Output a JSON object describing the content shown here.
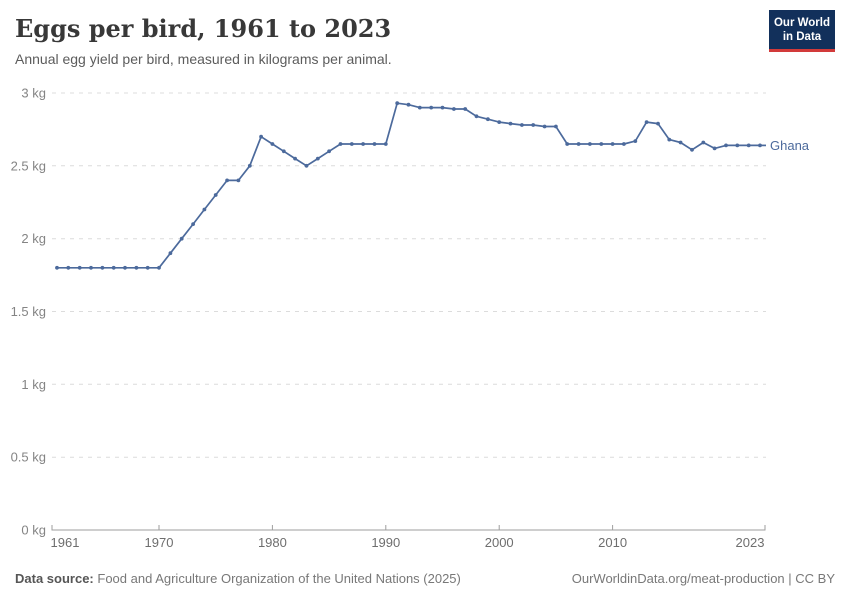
{
  "header": {
    "title": "Eggs per bird, 1961 to 2023",
    "subtitle": "Annual egg yield per bird, measured in kilograms per animal.",
    "logo": {
      "line1": "Our World",
      "line2": "in Data"
    }
  },
  "chart_data": {
    "type": "line",
    "title": "Eggs per bird, 1961 to 2023",
    "subtitle": "Annual egg yield per bird, measured in kilograms per animal.",
    "unit": "kg",
    "xlim": [
      1961,
      2023
    ],
    "ylim": [
      0,
      3
    ],
    "grid": "horizontal-dashed",
    "legend_position": "end-of-line",
    "y_ticks": [
      {
        "value": 0,
        "label": "0 kg"
      },
      {
        "value": 0.5,
        "label": "0.5 kg"
      },
      {
        "value": 1,
        "label": "1 kg"
      },
      {
        "value": 1.5,
        "label": "1.5 kg"
      },
      {
        "value": 2,
        "label": "2 kg"
      },
      {
        "value": 2.5,
        "label": "2.5 kg"
      },
      {
        "value": 3,
        "label": "3 kg"
      }
    ],
    "x_ticks": [
      {
        "value": 1961,
        "label": "1961"
      },
      {
        "value": 1970,
        "label": "1970"
      },
      {
        "value": 1980,
        "label": "1980"
      },
      {
        "value": 1990,
        "label": "1990"
      },
      {
        "value": 2000,
        "label": "2000"
      },
      {
        "value": 2010,
        "label": "2010"
      },
      {
        "value": 2023,
        "label": "2023"
      }
    ],
    "years": [
      1961,
      1962,
      1963,
      1964,
      1965,
      1966,
      1967,
      1968,
      1969,
      1970,
      1971,
      1972,
      1973,
      1974,
      1975,
      1976,
      1977,
      1978,
      1979,
      1980,
      1981,
      1982,
      1983,
      1984,
      1985,
      1986,
      1987,
      1988,
      1989,
      1990,
      1991,
      1992,
      1993,
      1994,
      1995,
      1996,
      1997,
      1998,
      1999,
      2000,
      2001,
      2002,
      2003,
      2004,
      2005,
      2006,
      2007,
      2008,
      2009,
      2010,
      2011,
      2012,
      2013,
      2014,
      2015,
      2016,
      2017,
      2018,
      2019,
      2020,
      2021,
      2022,
      2023
    ],
    "series": [
      {
        "name": "Ghana",
        "color": "#4C6A9C",
        "values": [
          1.8,
          1.8,
          1.8,
          1.8,
          1.8,
          1.8,
          1.8,
          1.8,
          1.8,
          1.8,
          1.9,
          2.0,
          2.1,
          2.2,
          2.3,
          2.4,
          2.4,
          2.5,
          2.7,
          2.65,
          2.6,
          2.55,
          2.5,
          2.55,
          2.6,
          2.65,
          2.65,
          2.65,
          2.65,
          2.65,
          2.93,
          2.92,
          2.9,
          2.9,
          2.9,
          2.89,
          2.89,
          2.84,
          2.82,
          2.8,
          2.79,
          2.78,
          2.78,
          2.77,
          2.77,
          2.65,
          2.65,
          2.65,
          2.65,
          2.65,
          2.65,
          2.67,
          2.8,
          2.79,
          2.68,
          2.66,
          2.61,
          2.66,
          2.62,
          2.64,
          2.64,
          2.64,
          2.64
        ]
      }
    ]
  },
  "footer": {
    "source_label": "Data source:",
    "source_text": "Food and Agriculture Organization of the United Nations (2025)",
    "url": "OurWorldinData.org/meat-production",
    "separator": " | ",
    "license": "CC BY"
  },
  "colors": {
    "line": "#4C6A9C",
    "gridline": "#dcdcdc",
    "axis": "#9e9e9e",
    "y_label": "#848484",
    "x_label": "#6e6e6e",
    "logo_bg": "#12305b",
    "logo_accent": "#d23a3a"
  }
}
